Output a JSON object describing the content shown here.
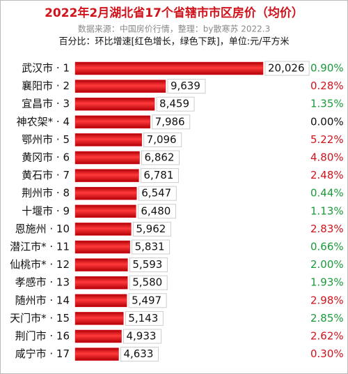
{
  "chart_data": {
    "type": "bar",
    "title": "2022年2月湖北省17个省辖市市区房价（均价）",
    "subtitle": "数据来源：中国房价行情，整理：by散寒苏  2022.3",
    "note": "百分比：环比增速[红色增长，绿色下跌]，单位:元/平方米",
    "categories": [
      "武汉市 · 1",
      "襄阳市 · 2",
      "宜昌市 · 3",
      "神农架* · 4",
      "鄂州市 · 5",
      "黄冈市 · 6",
      "黄石市 · 7",
      "荆州市 · 8",
      "十堰市 · 9",
      "恩施州 · 10",
      "潜江市* · 11",
      "仙桃市* · 12",
      "孝感市 · 13",
      "随州市 · 14",
      "天门市* · 15",
      "荆门市 · 16",
      "咸宁市 · 17"
    ],
    "values": [
      20026,
      9639,
      8459,
      7986,
      7096,
      6862,
      6781,
      6547,
      6480,
      5962,
      5831,
      5593,
      5580,
      5497,
      5143,
      4933,
      4633
    ],
    "value_labels": [
      "20,026",
      "9,639",
      "8,459",
      "7,986",
      "7,096",
      "6,862",
      "6,781",
      "6,547",
      "6,480",
      "5,962",
      "5,831",
      "5,593",
      "5,580",
      "5,497",
      "5,143",
      "4,933",
      "4,633"
    ],
    "color": "#e8101a",
    "changes": [
      {
        "value": 0.9,
        "label": "0.90%"
      },
      {
        "value": 0.28,
        "label": "0.28%"
      },
      {
        "value": 1.35,
        "label": "1.35%"
      },
      {
        "value": 0,
        "label": "0.00%"
      },
      {
        "value": 5.22,
        "label": "5.22%"
      },
      {
        "value": 4.8,
        "label": "4.80%"
      },
      {
        "value": 2.48,
        "label": "2.48%"
      },
      {
        "value": 0.44,
        "label": "0.44%"
      },
      {
        "value": 1.13,
        "label": "1.13%"
      },
      {
        "value": 2.83,
        "label": "2.83%"
      },
      {
        "value": 0.66,
        "label": "0.66%"
      },
      {
        "value": 2,
        "label": "2.00%"
      },
      {
        "value": 1.93,
        "label": "1.93%"
      },
      {
        "value": 2.98,
        "label": "2.98%"
      },
      {
        "value": 2.85,
        "label": "2.85%"
      },
      {
        "value": 2.62,
        "label": "2.62%"
      },
      {
        "value": 0.3,
        "label": "0.30%"
      }
    ],
    "change_colors": [
      "#1a9a3a",
      "#d0121b",
      "#1a9a3a",
      "#111111",
      "#d0121b",
      "#d0121b",
      "#d0121b",
      "#1a9a3a",
      "#1a9a3a",
      "#d0121b",
      "#1a9a3a",
      "#1a9a3a",
      "#1a9a3a",
      "#d0121b",
      "#1a9a3a",
      "#d0121b",
      "#d0121b"
    ]
  }
}
